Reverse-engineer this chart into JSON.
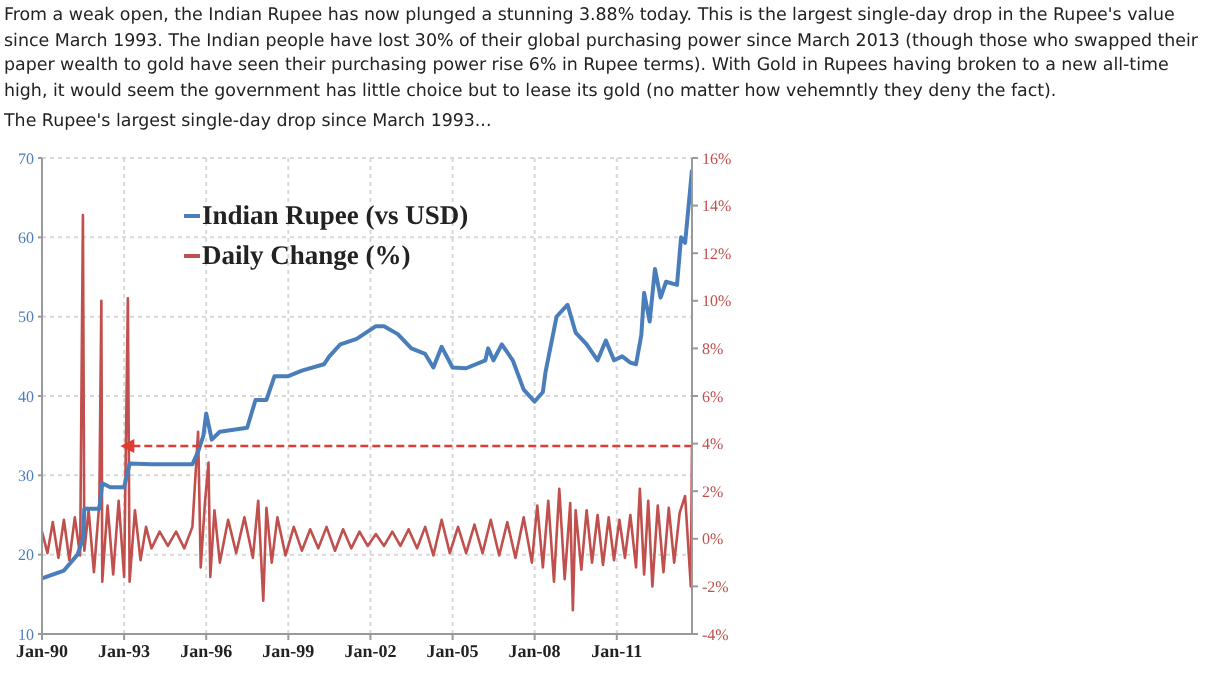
{
  "chart_data": {
    "type": "line",
    "annotations": [
      "From a weak open, the Indian Rupee has now plunged a stunning 3.88% today. This is the largest single-day drop in the Rupee's value since March 1993. The Indian people have lost 30% of their global purchasing power since March 2013 (though those who swapped their paper wealth to gold have seen their purchasing power rise 6% in Rupee terms). With Gold in Rupees having broken to a new all-time high, it would seem the government has little choice but to lease its gold (no matter how vehemntly they deny the fact).",
      "The Rupee's largest single-day drop since March 1993..."
    ],
    "xlim": [
      "1990-01-01",
      "2013-10-01"
    ],
    "xticks": [
      {
        "value": "1990-01-01",
        "label": "Jan-90"
      },
      {
        "value": "1993-01-01",
        "label": "Jan-93"
      },
      {
        "value": "1996-01-01",
        "label": "Jan-96"
      },
      {
        "value": "1999-01-01",
        "label": "Jan-99"
      },
      {
        "value": "2002-01-01",
        "label": "Jan-02"
      },
      {
        "value": "2005-01-01",
        "label": "Jan-05"
      },
      {
        "value": "2008-01-01",
        "label": "Jan-08"
      },
      {
        "value": "2011-01-01",
        "label": "Jan-11"
      }
    ],
    "ylim": [
      10,
      70
    ],
    "yticks": [
      10,
      20,
      30,
      40,
      50,
      60,
      70
    ],
    "y2lim": [
      -4,
      16
    ],
    "y2ticks": [
      {
        "value": -4,
        "label": "-4%"
      },
      {
        "value": -2,
        "label": "-2%"
      },
      {
        "value": 0,
        "label": "0%"
      },
      {
        "value": 2,
        "label": "2%"
      },
      {
        "value": 4,
        "label": "4%"
      },
      {
        "value": 6,
        "label": "6%"
      },
      {
        "value": 8,
        "label": "8%"
      },
      {
        "value": 10,
        "label": "10%"
      },
      {
        "value": 12,
        "label": "12%"
      },
      {
        "value": 14,
        "label": "14%"
      },
      {
        "value": 16,
        "label": "16%"
      }
    ],
    "grid": true,
    "legend": "top left",
    "marker": "none",
    "line_style": "solid",
    "series": [
      {
        "name": "Daily Change (%)",
        "color": "#c0504d",
        "axis": "y2",
        "x": [
          "1990-01-01",
          "1990-03-15",
          "1990-05-25",
          "1990-08-08",
          "1990-10-20",
          "1991-01-01",
          "1991-03-15",
          "1991-05-25",
          "1991-07-01",
          "1991-07-20",
          "1991-09-15",
          "1991-11-25",
          "1992-02-05",
          "1992-03-03",
          "1992-03-15",
          "1992-05-25",
          "1992-08-08",
          "1992-10-20",
          "1993-01-01",
          "1993-02-20",
          "1993-03-15",
          "1993-05-25",
          "1993-08-08",
          "1993-10-20",
          "1994-01-01",
          "1994-04-20",
          "1994-08-08",
          "1994-11-25",
          "1995-03-15",
          "1995-07-01",
          "1995-09-15",
          "1995-10-20",
          "1995-12-15",
          "1996-02-01",
          "1996-02-25",
          "1996-04-20",
          "1996-07-01",
          "1996-10-20",
          "1997-02-05",
          "1997-05-25",
          "1997-09-15",
          "1997-11-25",
          "1998-02-01",
          "1998-03-15",
          "1998-05-25",
          "1998-08-08",
          "1998-11-25",
          "1999-03-15",
          "1999-07-01",
          "1999-10-20",
          "2000-02-05",
          "2000-05-25",
          "2000-09-15",
          "2001-01-01",
          "2001-04-20",
          "2001-08-08",
          "2001-11-25",
          "2002-03-15",
          "2002-07-01",
          "2002-10-20",
          "2003-02-05",
          "2003-05-25",
          "2003-09-15",
          "2004-01-01",
          "2004-04-20",
          "2004-08-08",
          "2004-11-25",
          "2005-03-15",
          "2005-07-01",
          "2005-10-20",
          "2006-02-05",
          "2006-05-25",
          "2006-09-15",
          "2007-01-01",
          "2007-04-20",
          "2007-08-08",
          "2007-11-25",
          "2008-02-05",
          "2008-04-20",
          "2008-07-01",
          "2008-09-15",
          "2008-11-25",
          "2009-02-05",
          "2009-04-20",
          "2009-05-25",
          "2009-07-01",
          "2009-09-15",
          "2009-11-25",
          "2010-02-05",
          "2010-04-20",
          "2010-07-01",
          "2010-09-15",
          "2010-11-25",
          "2011-02-05",
          "2011-04-20",
          "2011-07-01",
          "2011-09-15",
          "2011-11-05",
          "2012-01-01",
          "2012-02-25",
          "2012-04-20",
          "2012-07-01",
          "2012-09-15",
          "2012-11-25",
          "2013-02-05",
          "2013-04-20",
          "2013-07-01",
          "2013-09-15",
          "2013-10-01"
        ],
        "values": [
          0.3,
          -0.6,
          0.7,
          -0.8,
          0.8,
          -0.9,
          0.9,
          -0.7,
          13.6,
          -0.5,
          1.2,
          -1.4,
          1.5,
          10.0,
          -1.8,
          1.4,
          -1.5,
          1.6,
          -1.6,
          10.1,
          -1.8,
          1.2,
          -0.9,
          0.5,
          -0.4,
          0.3,
          -0.3,
          0.3,
          -0.4,
          0.5,
          4.5,
          -1.2,
          1.5,
          3.2,
          -1.6,
          1.2,
          -1.0,
          0.8,
          -0.6,
          0.9,
          -0.8,
          1.6,
          -2.6,
          1.3,
          -1.0,
          0.9,
          -0.7,
          0.5,
          -0.5,
          0.4,
          -0.4,
          0.5,
          -0.5,
          0.4,
          -0.4,
          0.3,
          -0.3,
          0.2,
          -0.3,
          0.3,
          -0.3,
          0.4,
          -0.4,
          0.5,
          -0.7,
          0.8,
          -0.6,
          0.5,
          -0.6,
          0.6,
          -0.6,
          0.8,
          -0.7,
          0.7,
          -0.8,
          0.9,
          -1.0,
          1.4,
          -1.2,
          1.6,
          -1.8,
          2.1,
          -1.7,
          1.5,
          -3.0,
          1.2,
          -1.3,
          1.2,
          -1.0,
          1.0,
          -1.1,
          0.9,
          -0.9,
          0.8,
          -0.8,
          1.0,
          -1.2,
          2.1,
          -1.5,
          1.6,
          -2.0,
          1.4,
          -1.4,
          1.3,
          -1.0,
          1.1,
          1.8,
          -2.0,
          3.9
        ]
      },
      {
        "name": "Indian Rupee (vs USD)",
        "color": "#4a7ebb",
        "x": [
          "1990-01-01",
          "1990-10-20",
          "1991-04-20",
          "1991-07-01",
          "1991-07-20",
          "1992-02-05",
          "1992-03-15",
          "1992-07-01",
          "1993-01-01",
          "1993-03-15",
          "1994-01-01",
          "1995-07-01",
          "1995-09-15",
          "1995-11-25",
          "1996-01-01",
          "1996-03-15",
          "1996-07-01",
          "1997-07-01",
          "1997-10-20",
          "1998-03-15",
          "1998-07-01",
          "1999-01-01",
          "1999-07-01",
          "2000-04-20",
          "2000-07-01",
          "2000-11-25",
          "2001-07-01",
          "2002-03-15",
          "2002-07-01",
          "2003-01-01",
          "2003-07-01",
          "2004-01-01",
          "2004-04-20",
          "2004-08-08",
          "2005-01-01",
          "2005-07-01",
          "2006-03-15",
          "2006-04-20",
          "2006-07-01",
          "2006-10-20",
          "2007-03-15",
          "2007-08-08",
          "2008-01-01",
          "2008-04-20",
          "2008-05-25",
          "2008-10-20",
          "2009-03-15",
          "2009-07-01",
          "2009-11-25",
          "2010-04-20",
          "2010-08-08",
          "2010-11-25",
          "2011-03-15",
          "2011-07-01",
          "2011-09-15",
          "2011-11-25",
          "2012-01-01",
          "2012-03-15",
          "2012-05-25",
          "2012-08-08",
          "2012-10-20",
          "2013-03-15",
          "2013-05-08",
          "2013-07-01",
          "2013-10-01"
        ],
        "values": [
          17,
          18,
          20,
          22,
          25.8,
          25.8,
          29,
          28.5,
          28.5,
          31.5,
          31.4,
          31.4,
          33,
          35,
          37.8,
          34.5,
          35.5,
          36,
          39.5,
          39.5,
          42.5,
          42.5,
          43.2,
          44,
          45,
          46.5,
          47.2,
          48.8,
          48.8,
          47.8,
          46,
          45.3,
          43.6,
          46.2,
          43.6,
          43.5,
          44.5,
          46,
          44.5,
          46.5,
          44.5,
          40.8,
          39.3,
          40.5,
          43,
          50,
          51.5,
          48,
          46.5,
          44.5,
          47,
          44.5,
          45,
          44.2,
          44,
          47.7,
          53,
          49.4,
          56,
          52.4,
          54.4,
          54,
          60,
          59.3,
          68.5
        ]
      },
      {
        "color": "#e03c31",
        "axis": "y2",
        "line_style": "dashed",
        "marker": "triangle",
        "x": [
          "1993-04-20",
          "2013-10-01"
        ],
        "values": [
          3.9,
          3.9
        ]
      }
    ]
  }
}
